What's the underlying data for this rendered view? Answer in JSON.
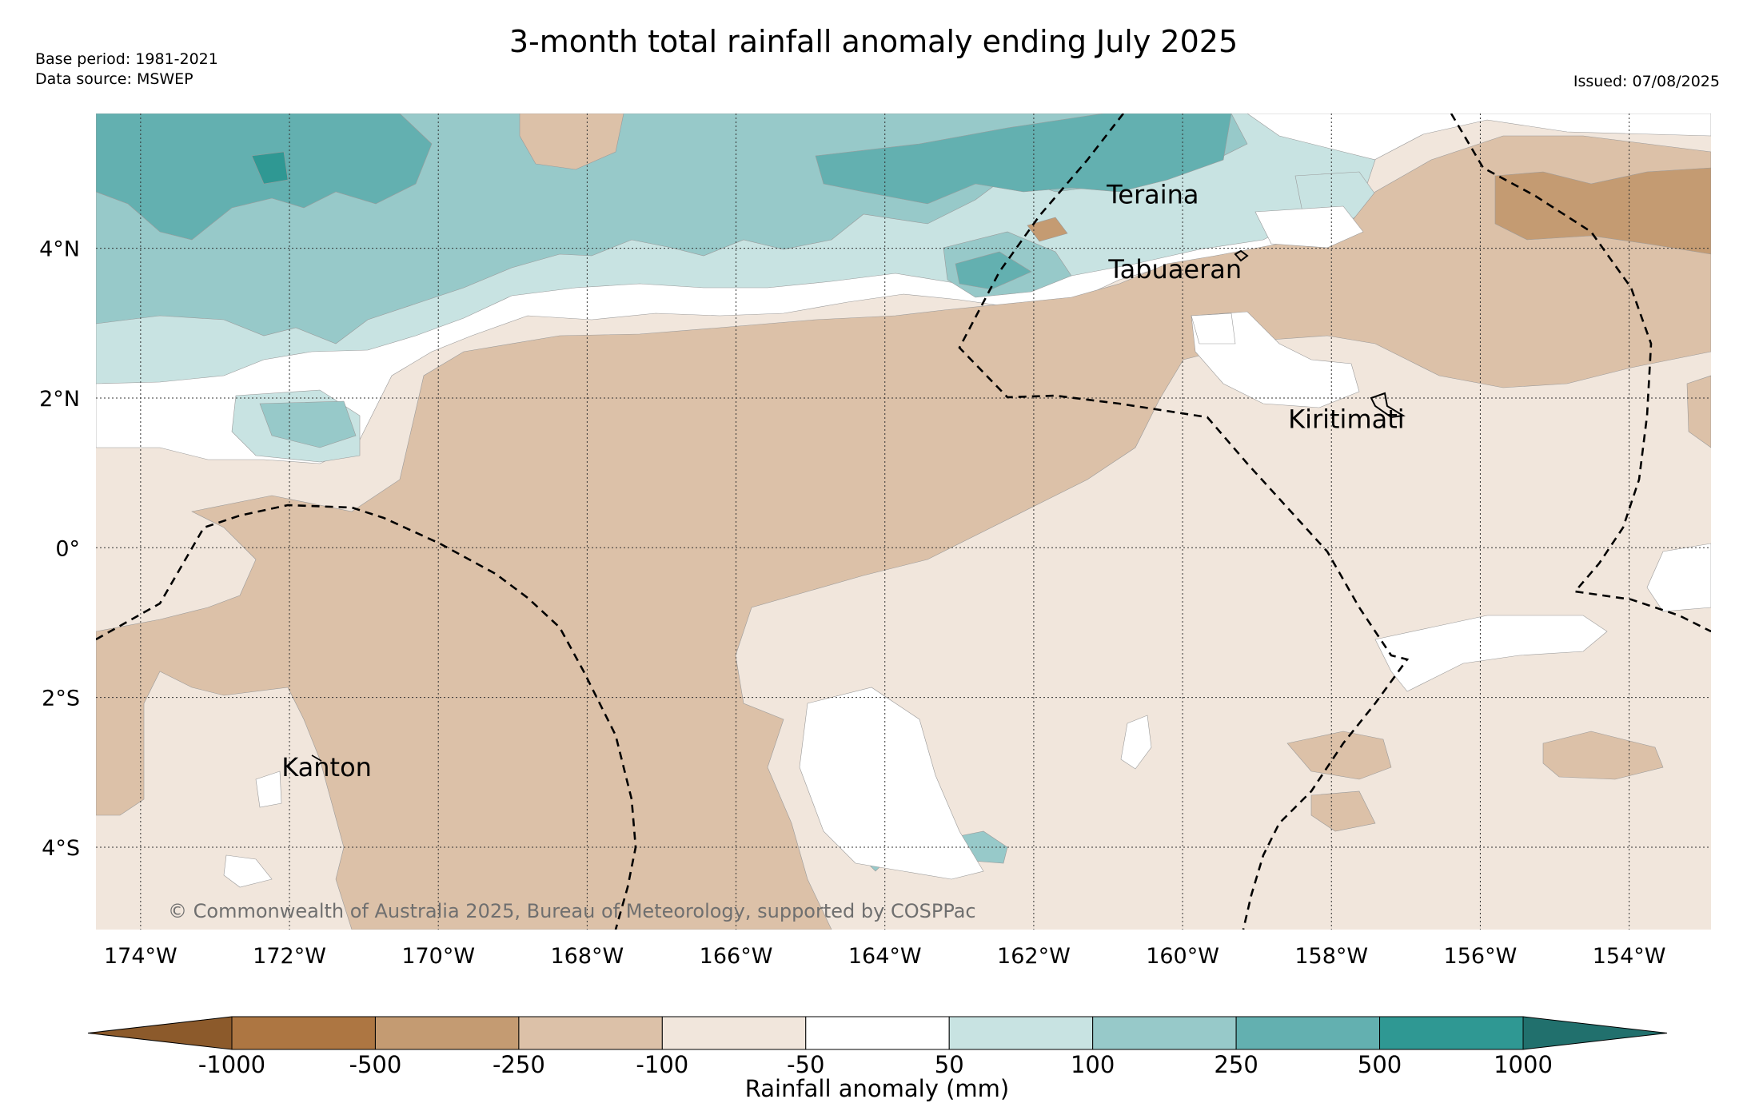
{
  "header": {
    "title": "3-month total rainfall anomaly ending July 2025",
    "base_period": "Base period: 1981-2021",
    "data_source": "Data source: MSWEP",
    "issued": "Issued: 07/08/2025"
  },
  "map": {
    "lon_range": [
      -174.6,
      -152.9
    ],
    "lat_range": [
      -5.1,
      5.8
    ],
    "lon_ticks": [
      {
        "value": -174,
        "label": "174°W"
      },
      {
        "value": -172,
        "label": "172°W"
      },
      {
        "value": -170,
        "label": "170°W"
      },
      {
        "value": -168,
        "label": "168°W"
      },
      {
        "value": -166,
        "label": "166°W"
      },
      {
        "value": -164,
        "label": "164°W"
      },
      {
        "value": -162,
        "label": "162°W"
      },
      {
        "value": -160,
        "label": "160°W"
      },
      {
        "value": -158,
        "label": "158°W"
      },
      {
        "value": -156,
        "label": "156°W"
      },
      {
        "value": -154,
        "label": "154°W"
      }
    ],
    "lat_ticks": [
      {
        "value": 4,
        "label": "4°N"
      },
      {
        "value": 2,
        "label": "2°N"
      },
      {
        "value": 0,
        "label": "0°"
      },
      {
        "value": -2,
        "label": "2°S"
      },
      {
        "value": -4,
        "label": "4°S"
      }
    ],
    "places": [
      {
        "name": "Teraina",
        "lon": -160.4,
        "lat": 4.6
      },
      {
        "name": "Tabuaeran",
        "lon": -160.1,
        "lat": 3.6
      },
      {
        "name": "Kiritimati",
        "lon": -157.8,
        "lat": 1.6
      },
      {
        "name": "Kanton",
        "lon": -171.5,
        "lat": -3.05
      }
    ],
    "copyright": "© Commonwealth of Australia 2025, Bureau of Meteorology, supported by COSPPac"
  },
  "colorbar": {
    "title": "Rainfall anomaly (mm)",
    "ticks": [
      "-1000",
      "-500",
      "-250",
      "-100",
      "-50",
      "50",
      "100",
      "250",
      "500",
      "1000"
    ],
    "colors": [
      "#8c5a2b",
      "#ad7642",
      "#c49b72",
      "#dcc1a8",
      "#f1e6dc",
      "#ffffff",
      "#c8e3e2",
      "#97c9c9",
      "#63b0b0",
      "#2f9893",
      "#21706d"
    ]
  }
}
